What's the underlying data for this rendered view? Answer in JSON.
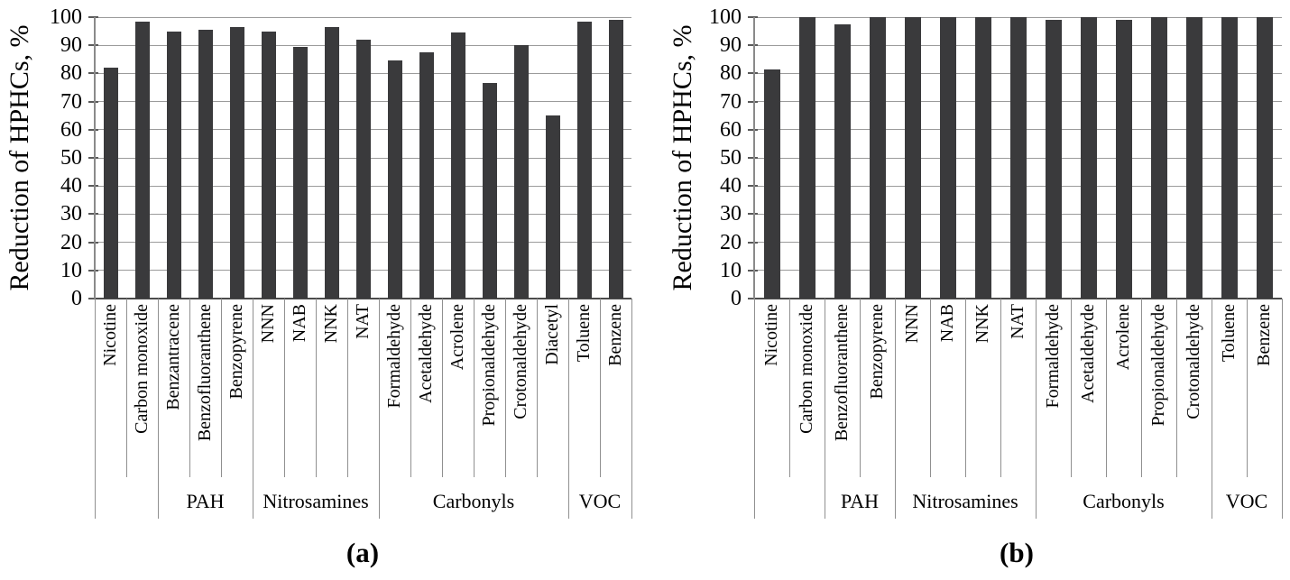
{
  "figure": {
    "caption_a": "(a)",
    "caption_b": "(b)"
  },
  "colors": {
    "bar": "#3a3a3c",
    "gridline": "#9b9b9b",
    "axis": "#4c4c4c",
    "text": "#000000"
  },
  "chart_data": [
    {
      "id": "a",
      "type": "bar",
      "caption": "(a)",
      "ylabel": "Reduction of HPHCs, %",
      "ylim": [
        0,
        100
      ],
      "ytick_step": 10,
      "grid": true,
      "legend": "none",
      "bar_color": "#3a3a3c",
      "categories": [
        "Nicotine",
        "Carbon monoxide",
        "Benzantracene",
        "Benzofluoranthene",
        "Benzopyrene",
        "NNN",
        "NAB",
        "NNK",
        "NAT",
        "Formaldehyde",
        "Acetaldehyde",
        "Acrolene",
        "Propionaldehyde",
        "Crotonaldehyde",
        "Diacetyl",
        "Toluene",
        "Benzene"
      ],
      "values": [
        82,
        98.5,
        95,
        95.5,
        96.5,
        95,
        89.5,
        96.5,
        92,
        84.5,
        87.5,
        94.5,
        76.5,
        90,
        65,
        98.5,
        99
      ],
      "groups": [
        {
          "label": "",
          "span": 2
        },
        {
          "label": "PAH",
          "span": 3
        },
        {
          "label": "Nitrosamines",
          "span": 4
        },
        {
          "label": "Carbonyls",
          "span": 6
        },
        {
          "label": "VOC",
          "span": 2
        }
      ]
    },
    {
      "id": "b",
      "type": "bar",
      "caption": "(b)",
      "ylabel": "Reduction of HPHCs, %",
      "ylim": [
        0,
        100
      ],
      "ytick_step": 10,
      "grid": true,
      "legend": "none",
      "bar_color": "#3a3a3c",
      "categories": [
        "Nicotine",
        "Carbon monoxide",
        "Benzofluoranthene",
        "Benzopyrene",
        "NNN",
        "NAB",
        "NNK",
        "NAT",
        "Formaldehyde",
        "Acetaldehyde",
        "Acrolene",
        "Propionaldehyde",
        "Crotonaldehyde",
        "Toluene",
        "Benzene"
      ],
      "values": [
        81.5,
        100,
        97.5,
        100,
        100,
        100,
        100,
        100,
        99,
        100,
        99,
        100,
        100,
        100,
        100
      ],
      "groups": [
        {
          "label": "",
          "span": 2
        },
        {
          "label": "PAH",
          "span": 2
        },
        {
          "label": "Nitrosamines",
          "span": 4
        },
        {
          "label": "Carbonyls",
          "span": 5
        },
        {
          "label": "VOC",
          "span": 2
        }
      ]
    }
  ]
}
